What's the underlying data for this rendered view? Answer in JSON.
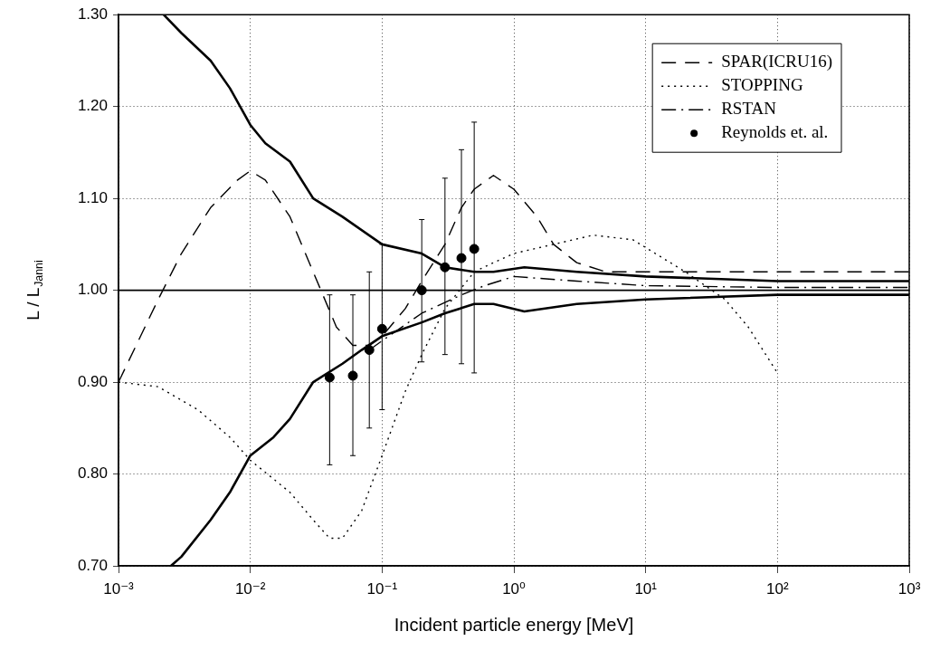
{
  "chart_data": {
    "type": "line",
    "xlabel": "Incident particle energy [MeV]",
    "ylabel": "L / L$_{Janni}$",
    "log": "x",
    "grid": true,
    "legend": "top right",
    "xlim": [
      0.001,
      1000
    ],
    "xticks": [
      {
        "value": 0.001,
        "label": "10⁻³"
      },
      {
        "value": 0.01,
        "label": "10⁻²"
      },
      {
        "value": 0.1,
        "label": "10⁻¹"
      },
      {
        "value": 1,
        "label": "10⁰"
      },
      {
        "value": 10,
        "label": "10¹"
      },
      {
        "value": 100,
        "label": "10²"
      },
      {
        "value": 1000,
        "label": "10³"
      }
    ],
    "ylim": [
      0.7,
      1.3
    ],
    "yticks": [
      {
        "value": 0.7,
        "label": "0.70"
      },
      {
        "value": 0.8,
        "label": "0.80"
      },
      {
        "value": 0.9,
        "label": "0.90"
      },
      {
        "value": 1.0,
        "label": "1.00"
      },
      {
        "value": 1.1,
        "label": "1.10"
      },
      {
        "value": 1.2,
        "label": "1.20"
      },
      {
        "value": 1.3,
        "label": "1.30"
      }
    ],
    "ref_lines": [
      {
        "axis": "y",
        "value": 1.0,
        "color": "#000000",
        "line_style": "solid"
      }
    ],
    "series": [
      {
        "name": "SPAR(ICRU16)",
        "color": "#000000",
        "line_style": "dashed",
        "marker": "none",
        "x": [
          0.001,
          0.002,
          0.003,
          0.005,
          0.008,
          0.01,
          0.013,
          0.02,
          0.03,
          0.045,
          0.06,
          0.08,
          0.1,
          0.15,
          0.2,
          0.3,
          0.4,
          0.5,
          0.7,
          1,
          1.5,
          2,
          3,
          5,
          10,
          100,
          1000
        ],
        "values": [
          0.9,
          0.99,
          1.04,
          1.09,
          1.12,
          1.13,
          1.12,
          1.08,
          1.02,
          0.96,
          0.94,
          0.94,
          0.95,
          0.98,
          1.01,
          1.05,
          1.09,
          1.11,
          1.125,
          1.11,
          1.08,
          1.05,
          1.03,
          1.02,
          1.02,
          1.02,
          1.02
        ]
      },
      {
        "name": "STOPPING",
        "color": "#000000",
        "line_style": "dotted",
        "marker": "none",
        "x": [
          0.001,
          0.002,
          0.004,
          0.007,
          0.01,
          0.02,
          0.03,
          0.04,
          0.05,
          0.07,
          0.1,
          0.15,
          0.2,
          0.3,
          0.5,
          0.7,
          1,
          2,
          4,
          8,
          20,
          40,
          60,
          100
        ],
        "values": [
          0.9,
          0.895,
          0.87,
          0.84,
          0.815,
          0.78,
          0.75,
          0.73,
          0.73,
          0.76,
          0.82,
          0.89,
          0.93,
          0.98,
          1.02,
          1.03,
          1.04,
          1.05,
          1.06,
          1.055,
          1.02,
          0.99,
          0.96,
          0.91
        ]
      },
      {
        "name": "RSTAN",
        "color": "#000000",
        "line_style": "dashdot",
        "marker": "none",
        "x": [
          0.08,
          0.1,
          0.2,
          0.4,
          0.6,
          1,
          3,
          10,
          100,
          1000
        ],
        "values": [
          0.935,
          0.945,
          0.975,
          0.995,
          1.005,
          1.015,
          1.01,
          1.005,
          1.003,
          1.003
        ]
      },
      {
        "name": "Reynolds et. al.",
        "type": "scatter",
        "color": "#000000",
        "marker": "circle",
        "x": [
          0.04,
          0.06,
          0.08,
          0.1,
          0.2,
          0.3,
          0.4,
          0.5
        ],
        "values": [
          0.905,
          0.907,
          0.935,
          0.958,
          1.0,
          1.025,
          1.035,
          1.045
        ],
        "errors": [
          [
            0.81,
            0.995
          ],
          [
            0.82,
            0.995
          ],
          [
            0.85,
            1.02
          ],
          [
            0.87,
            1.05
          ],
          [
            0.922,
            1.077
          ],
          [
            0.93,
            1.122
          ],
          [
            0.92,
            1.153
          ],
          [
            0.91,
            1.183
          ]
        ]
      },
      {
        "color": "#000000",
        "line_style": "solid",
        "marker": "none",
        "x": [
          0.0022,
          0.003,
          0.005,
          0.007,
          0.01,
          0.013,
          0.02,
          0.03,
          0.05,
          0.1,
          0.2,
          0.3,
          0.5,
          0.7,
          1.2,
          3,
          10,
          100,
          1000
        ],
        "values": [
          1.3,
          1.28,
          1.25,
          1.22,
          1.18,
          1.16,
          1.14,
          1.1,
          1.08,
          1.05,
          1.04,
          1.025,
          1.02,
          1.02,
          1.025,
          1.02,
          1.015,
          1.01,
          1.01
        ]
      },
      {
        "color": "#000000",
        "line_style": "solid",
        "marker": "none",
        "x": [
          0.0025,
          0.003,
          0.005,
          0.007,
          0.01,
          0.015,
          0.02,
          0.03,
          0.05,
          0.07,
          0.1,
          0.2,
          0.3,
          0.5,
          0.7,
          1.2,
          3,
          10,
          100,
          1000
        ],
        "values": [
          0.7,
          0.71,
          0.75,
          0.78,
          0.82,
          0.84,
          0.86,
          0.9,
          0.92,
          0.935,
          0.95,
          0.965,
          0.975,
          0.985,
          0.985,
          0.977,
          0.985,
          0.99,
          0.995,
          0.995
        ]
      }
    ]
  }
}
